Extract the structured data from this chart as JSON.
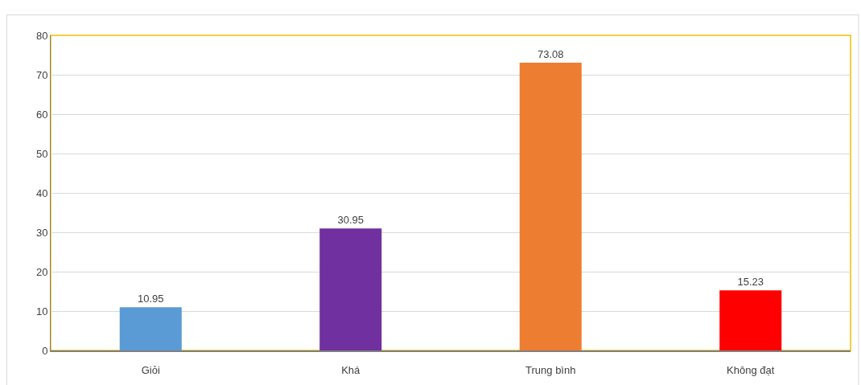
{
  "chart_data": {
    "type": "bar",
    "categories": [
      "Giỏi",
      "Khá",
      "Trung bình",
      "Không đạt"
    ],
    "values": [
      10.95,
      30.95,
      73.08,
      15.23
    ],
    "colors": [
      "#5b9bd5",
      "#7030a0",
      "#ed7d31",
      "#ff0000"
    ],
    "ylim": [
      0,
      80
    ],
    "yticks": [
      0,
      10,
      20,
      30,
      40,
      50,
      60,
      70,
      80
    ],
    "grid": "y",
    "data_labels": true
  }
}
